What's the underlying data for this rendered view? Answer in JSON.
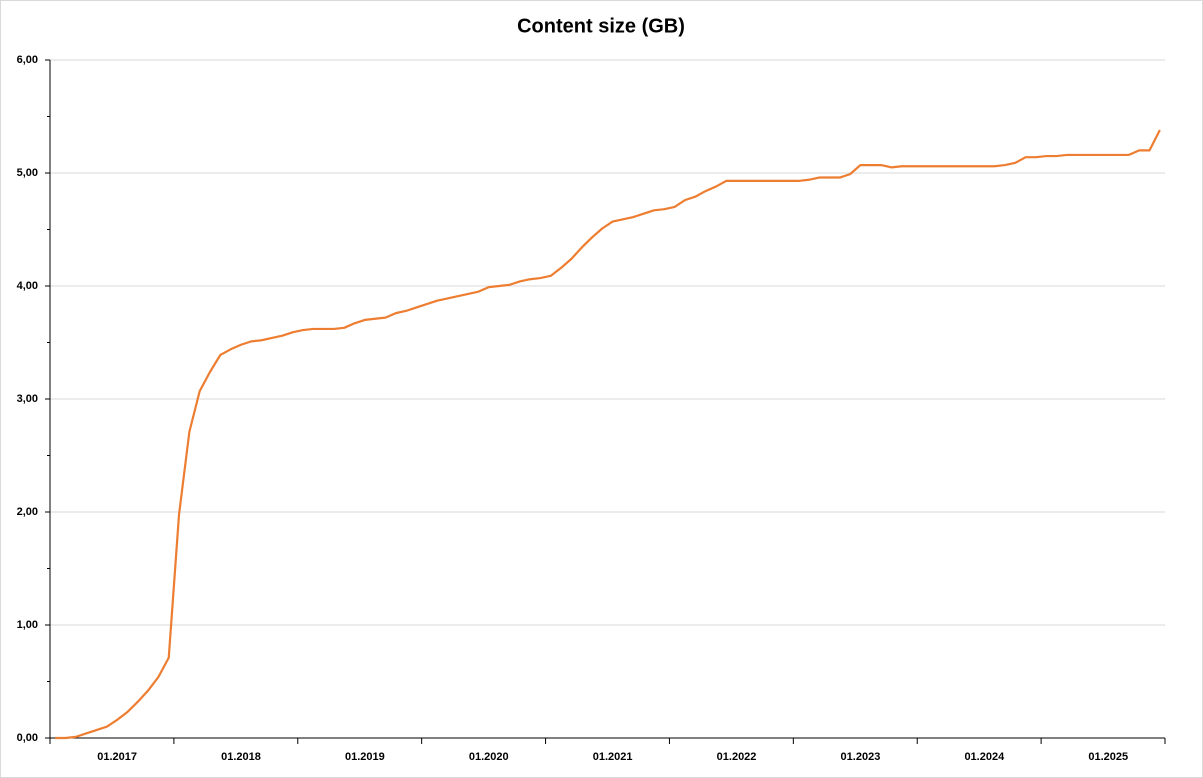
{
  "chart_data": {
    "type": "line",
    "title": "Content size (GB)",
    "categories": [
      null,
      null,
      null,
      null,
      null,
      null,
      "01.2017",
      null,
      null,
      null,
      null,
      null,
      null,
      null,
      null,
      null,
      null,
      null,
      "01.2018",
      null,
      null,
      null,
      null,
      null,
      null,
      null,
      null,
      null,
      null,
      null,
      "01.2019",
      null,
      null,
      null,
      null,
      null,
      null,
      null,
      null,
      null,
      null,
      null,
      "01.2020",
      null,
      null,
      null,
      null,
      null,
      null,
      null,
      null,
      null,
      null,
      null,
      "01.2021",
      null,
      null,
      null,
      null,
      null,
      null,
      null,
      null,
      null,
      null,
      null,
      "01.2022",
      null,
      null,
      null,
      null,
      null,
      null,
      null,
      null,
      null,
      null,
      null,
      "01.2023",
      null,
      null,
      null,
      null,
      null,
      null,
      null,
      null,
      null,
      null,
      null,
      "01.2024",
      null,
      null,
      null,
      null,
      null,
      null,
      null,
      null,
      null,
      null,
      null,
      "01.2025",
      null,
      null,
      null,
      null,
      null
    ],
    "values": [
      0,
      0,
      0.01,
      0.04,
      0.07,
      0.1,
      0.16,
      0.23,
      0.32,
      0.42,
      0.54,
      0.71,
      1.98,
      2.71,
      3.07,
      3.24,
      3.39,
      3.44,
      3.48,
      3.51,
      3.52,
      3.54,
      3.56,
      3.59,
      3.61,
      3.62,
      3.62,
      3.62,
      3.63,
      3.67,
      3.7,
      3.71,
      3.72,
      3.76,
      3.78,
      3.81,
      3.84,
      3.87,
      3.89,
      3.91,
      3.93,
      3.95,
      3.99,
      4,
      4.01,
      4.04,
      4.06,
      4.07,
      4.09,
      4.16,
      4.24,
      4.34,
      4.43,
      4.51,
      4.57,
      4.59,
      4.61,
      4.64,
      4.67,
      4.68,
      4.7,
      4.76,
      4.79,
      4.84,
      4.88,
      4.93,
      4.93,
      4.93,
      4.93,
      4.93,
      4.93,
      4.93,
      4.93,
      4.94,
      4.96,
      4.96,
      4.96,
      4.99,
      5.07,
      5.07,
      5.07,
      5.05,
      5.06,
      5.06,
      5.06,
      5.06,
      5.06,
      5.06,
      5.06,
      5.06,
      5.06,
      5.06,
      5.07,
      5.09,
      5.14,
      5.14,
      5.15,
      5.15,
      5.16,
      5.16,
      5.16,
      5.16,
      5.16,
      5.16,
      5.16,
      5.2,
      5.2,
      5.38
    ],
    "color": "#ed7d31",
    "ylim": [
      0,
      6
    ],
    "yticks": [
      {
        "value": 0,
        "label": "0,00"
      },
      {
        "value": 1,
        "label": "1,00"
      },
      {
        "value": 2,
        "label": "2,00"
      },
      {
        "value": 3,
        "label": "3,00"
      },
      {
        "value": 4,
        "label": "4,00"
      },
      {
        "value": 5,
        "label": "5,00"
      },
      {
        "value": 6,
        "label": "6,00"
      }
    ],
    "grid": true
  }
}
